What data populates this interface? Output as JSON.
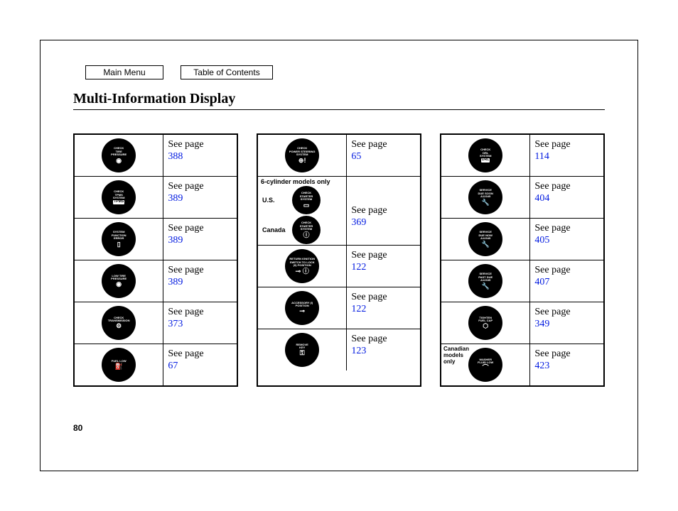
{
  "nav": {
    "main_menu": "Main Menu",
    "toc": "Table of Contents"
  },
  "title": "Multi-Information Display",
  "page_number": "80",
  "see_label": "See page",
  "link_color": "#0019e0",
  "sub_6cyl": "6-cylinder models only",
  "us_label": "U.S.",
  "canada_label": "Canada",
  "canadian_only": "Canadian models only",
  "col1": [
    {
      "lines": [
        "CHECK",
        "TIRE",
        "PRESSURE"
      ],
      "glyph": "◉",
      "page": "388"
    },
    {
      "lines": [
        "CHECK",
        "TPMS",
        "SYSTEM"
      ],
      "box": "TPMS",
      "page": "389"
    },
    {
      "lines": [
        "SYSTEM",
        "FUNCTION",
        "ERROR"
      ],
      "glyph": "▯",
      "page": "389"
    },
    {
      "lines": [
        "LOW TIRE",
        "PRESSURE"
      ],
      "glyph": "◉",
      "page": "389"
    },
    {
      "lines": [
        "CHECK",
        "TRANSMISSION"
      ],
      "glyph": "⚙",
      "page": "373"
    },
    {
      "lines": [
        "FUEL LOW"
      ],
      "glyph": "⛽",
      "page": "67"
    }
  ],
  "col2_top": {
    "lines": [
      "CHECK",
      "POWER STEERING",
      "SYSTEM"
    ],
    "glyph": "⊕!",
    "page": "65"
  },
  "col2_us": {
    "lines": [
      "CHECK",
      "STARTER",
      "SYSTEM"
    ],
    "glyph": "▭"
  },
  "col2_ca": {
    "lines": [
      "CHECK",
      "STARTER",
      "SYSTEM"
    ],
    "glyph": "ⓘ"
  },
  "col2_pair_page": "369",
  "col2_rest": [
    {
      "lines": [
        "RETURN IGNITION",
        "SWITCH TO LOCK",
        "(0) POSITION"
      ],
      "glyph": "⊸ ⓘ",
      "page": "122"
    },
    {
      "lines": [
        "ACCESSORY (I)",
        "POSITION"
      ],
      "glyph": "⊸",
      "page": "122"
    },
    {
      "lines": [
        "REMOVE",
        "KEY"
      ],
      "glyph": "⚿",
      "page": "123"
    }
  ],
  "col3": [
    {
      "lines": [
        "CHECK",
        "DRL",
        "SYSTEM"
      ],
      "box": "DRL",
      "page": "114"
    },
    {
      "lines": [
        "SERVICE",
        "DUE SOON",
        "",
        "A12345"
      ],
      "glyph": "🔧",
      "page": "404"
    },
    {
      "lines": [
        "SERVICE",
        "DUE NOW",
        "",
        "A12345"
      ],
      "glyph": "🔧",
      "page": "405"
    },
    {
      "lines": [
        "SERVICE",
        "PAST DUE",
        "",
        "A12345"
      ],
      "glyph": "🔧",
      "page": "407"
    },
    {
      "lines": [
        "TIGHTEN",
        "FUEL CAP"
      ],
      "glyph": "⬡",
      "page": "349"
    },
    {
      "note": "canadian",
      "lines": [
        "WASHER",
        "FLUID LOW"
      ],
      "glyph": "⌒",
      "page": "423"
    }
  ]
}
